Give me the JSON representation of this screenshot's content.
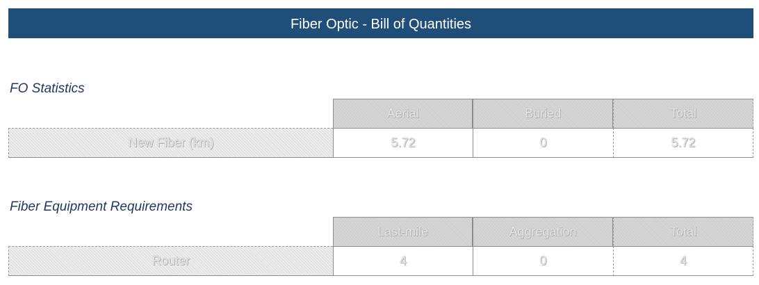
{
  "title": "Fiber Optic - Bill of Quantities",
  "fo_statistics": {
    "heading": "FO Statistics",
    "columns": [
      "Aerial",
      "Buried",
      "Total"
    ],
    "row": {
      "label": "New Fiber (km)",
      "values": [
        "5.72",
        "0",
        "5.72"
      ]
    }
  },
  "fiber_equipment": {
    "heading": "Fiber Equipment Requirements",
    "columns": [
      "Last-mile",
      "Aggregation",
      "Total"
    ],
    "row": {
      "label": "Router",
      "values": [
        "4",
        "0",
        "4"
      ]
    }
  },
  "colors": {
    "title_bg": "#1f4e79",
    "heading_text": "#1f3864",
    "header_bg": "#d0d0d0"
  }
}
